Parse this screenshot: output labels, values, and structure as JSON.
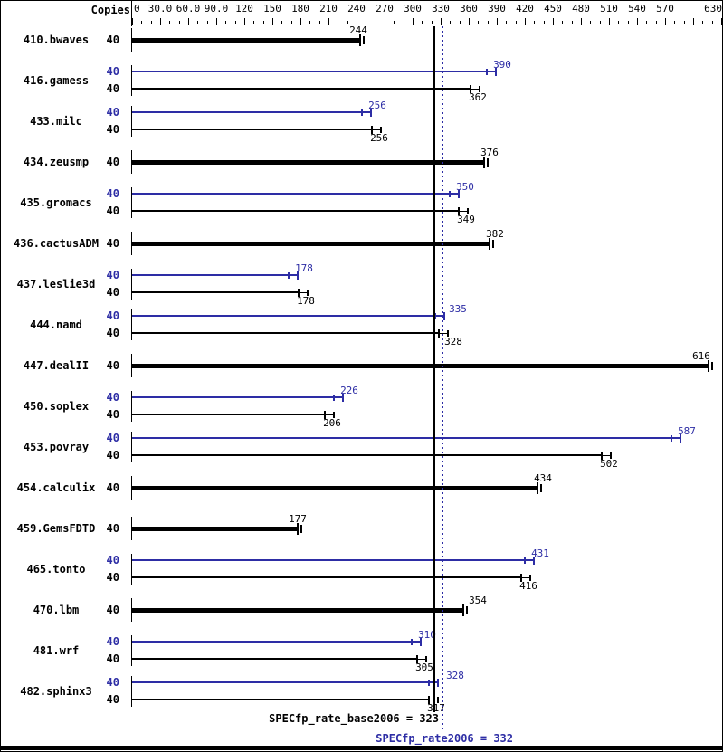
{
  "chart_data": {
    "type": "bar",
    "orientation": "horizontal",
    "copies_header": "Copies",
    "x_axis": {
      "min": 0,
      "max": 630,
      "minor_tick_step": 10,
      "major_tick_step": 30,
      "tick_labels": [
        {
          "v": 0,
          "t": "0"
        },
        {
          "v": 30,
          "t": "30.0"
        },
        {
          "v": 60,
          "t": "60.0"
        },
        {
          "v": 90,
          "t": "90.0"
        },
        {
          "v": 120,
          "t": "120"
        },
        {
          "v": 150,
          "t": "150"
        },
        {
          "v": 180,
          "t": "180"
        },
        {
          "v": 210,
          "t": "210"
        },
        {
          "v": 240,
          "t": "240"
        },
        {
          "v": 270,
          "t": "270"
        },
        {
          "v": 300,
          "t": "300"
        },
        {
          "v": 330,
          "t": "330"
        },
        {
          "v": 360,
          "t": "360"
        },
        {
          "v": 390,
          "t": "390"
        },
        {
          "v": 420,
          "t": "420"
        },
        {
          "v": 450,
          "t": "450"
        },
        {
          "v": 480,
          "t": "480"
        },
        {
          "v": 510,
          "t": "510"
        },
        {
          "v": 540,
          "t": "540"
        },
        {
          "v": 570,
          "t": "570"
        },
        {
          "v": 630,
          "t": "630"
        }
      ]
    },
    "series_colors": {
      "base": "#000000",
      "peak": "#2d2da5"
    },
    "benchmarks": [
      {
        "name": "410.bwaves",
        "copies": 40,
        "base": 244,
        "peak": null
      },
      {
        "name": "416.gamess",
        "copies": 40,
        "base": 362,
        "peak": 390
      },
      {
        "name": "433.milc",
        "copies": 40,
        "base": 256,
        "peak": 256
      },
      {
        "name": "434.zeusmp",
        "copies": 40,
        "base": 376,
        "peak": null
      },
      {
        "name": "435.gromacs",
        "copies": 40,
        "base": 349,
        "peak": 350
      },
      {
        "name": "436.cactusADM",
        "copies": 40,
        "base": 382,
        "peak": null
      },
      {
        "name": "437.leslie3d",
        "copies": 40,
        "base": 178,
        "peak": 178
      },
      {
        "name": "444.namd",
        "copies": 40,
        "base": 328,
        "peak": 335
      },
      {
        "name": "447.dealII",
        "copies": 40,
        "base": 616,
        "peak": null
      },
      {
        "name": "450.soplex",
        "copies": 40,
        "base": 206,
        "peak": 226
      },
      {
        "name": "453.povray",
        "copies": 40,
        "base": 502,
        "peak": 587
      },
      {
        "name": "454.calculix",
        "copies": 40,
        "base": 434,
        "peak": null
      },
      {
        "name": "459.GemsFDTD",
        "copies": 40,
        "base": 177,
        "peak": null
      },
      {
        "name": "465.tonto",
        "copies": 40,
        "base": 416,
        "peak": 431
      },
      {
        "name": "470.lbm",
        "copies": 40,
        "base": 354,
        "peak": null
      },
      {
        "name": "481.wrf",
        "copies": 40,
        "base": 305,
        "peak": 310
      },
      {
        "name": "482.sphinx3",
        "copies": 40,
        "base": 317,
        "peak": 328
      }
    ],
    "summary": {
      "base": {
        "text": "SPECfp_rate_base2006 = 323",
        "value": 323,
        "line_style": "solid",
        "color": "#000000"
      },
      "peak": {
        "text": "SPECfp_rate2006 = 332",
        "value": 332,
        "line_style": "dotted",
        "color": "#2d2da5"
      }
    }
  }
}
